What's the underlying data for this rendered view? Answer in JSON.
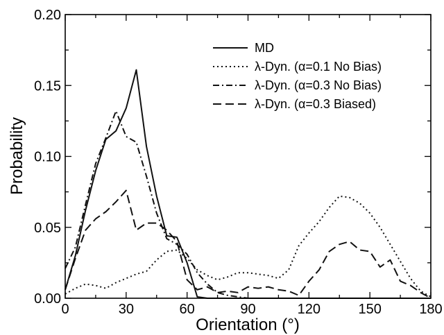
{
  "chart_data": {
    "type": "line",
    "xlabel": "Orientation (°)",
    "ylabel": "Probability",
    "xlim": [
      0,
      180
    ],
    "ylim": [
      0,
      0.2
    ],
    "xticks": [
      0,
      30,
      60,
      90,
      120,
      150,
      180
    ],
    "yticks": [
      0.0,
      0.05,
      0.1,
      0.15,
      0.2
    ],
    "xtick_labels": [
      "0",
      "30",
      "60",
      "90",
      "120",
      "150",
      "180"
    ],
    "ytick_labels": [
      "0.00",
      "0.05",
      "0.10",
      "0.15",
      "0.20"
    ],
    "grid": false,
    "legend_position": "top-right",
    "series": [
      {
        "name": "MD",
        "style": "solid",
        "x": [
          0,
          5,
          10,
          15,
          20,
          25,
          30,
          35,
          40,
          45,
          50,
          55,
          60,
          65,
          70,
          75,
          80,
          85,
          90,
          180
        ],
        "y": [
          0.006,
          0.03,
          0.062,
          0.09,
          0.112,
          0.118,
          0.134,
          0.161,
          0.107,
          0.072,
          0.044,
          0.043,
          0.025,
          0.001,
          0.0,
          0.0,
          0.0,
          0.0,
          0.0,
          0.0
        ]
      },
      {
        "name": "λ-Dyn. (α=0.1 No Bias)",
        "style": "dotted",
        "x": [
          0,
          5,
          10,
          15,
          20,
          25,
          30,
          35,
          40,
          45,
          50,
          55,
          60,
          65,
          70,
          75,
          80,
          85,
          90,
          95,
          100,
          105,
          110,
          115,
          120,
          125,
          130,
          135,
          140,
          145,
          150,
          155,
          160,
          165,
          170,
          175,
          180
        ],
        "y": [
          0.003,
          0.007,
          0.01,
          0.009,
          0.007,
          0.011,
          0.014,
          0.017,
          0.019,
          0.027,
          0.033,
          0.034,
          0.028,
          0.02,
          0.016,
          0.013,
          0.015,
          0.018,
          0.018,
          0.017,
          0.016,
          0.014,
          0.02,
          0.037,
          0.046,
          0.054,
          0.064,
          0.072,
          0.071,
          0.067,
          0.06,
          0.05,
          0.038,
          0.026,
          0.014,
          0.005,
          0.001
        ]
      },
      {
        "name": "λ-Dyn. (α=0.3 No Bias)",
        "style": "dashdot",
        "x": [
          0,
          5,
          10,
          15,
          20,
          25,
          30,
          35,
          40,
          45,
          50,
          55,
          60,
          65,
          70,
          75,
          80,
          85,
          90,
          180
        ],
        "y": [
          0.021,
          0.036,
          0.066,
          0.095,
          0.113,
          0.132,
          0.114,
          0.11,
          0.086,
          0.06,
          0.042,
          0.038,
          0.031,
          0.018,
          0.01,
          0.004,
          0.002,
          0.001,
          0.0,
          0.0
        ]
      },
      {
        "name": "λ-Dyn. (α=0.3 Biased)",
        "style": "dashed",
        "x": [
          0,
          5,
          10,
          15,
          20,
          25,
          30,
          35,
          40,
          45,
          50,
          55,
          60,
          65,
          70,
          75,
          80,
          85,
          90,
          95,
          100,
          105,
          110,
          115,
          120,
          125,
          130,
          135,
          140,
          145,
          150,
          155,
          160,
          165,
          170,
          175,
          180
        ],
        "y": [
          0.006,
          0.028,
          0.048,
          0.056,
          0.061,
          0.068,
          0.076,
          0.048,
          0.053,
          0.053,
          0.048,
          0.04,
          0.013,
          0.006,
          0.008,
          0.004,
          0.005,
          0.004,
          0.008,
          0.007,
          0.008,
          0.006,
          0.005,
          0.002,
          0.012,
          0.02,
          0.033,
          0.038,
          0.04,
          0.034,
          0.033,
          0.022,
          0.027,
          0.012,
          0.009,
          0.004,
          0.0
        ]
      }
    ]
  }
}
